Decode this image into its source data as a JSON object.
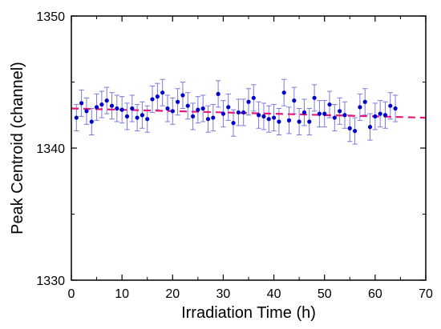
{
  "chart_data": {
    "type": "scatter",
    "title": "",
    "xlabel": "Irradiation Time (h)",
    "ylabel": "Peak Centroid (channel)",
    "xlim": [
      0,
      70
    ],
    "ylim": [
      1330,
      1350
    ],
    "xticks": [
      0,
      10,
      20,
      30,
      40,
      50,
      60,
      70
    ],
    "yticks": [
      1330,
      1340,
      1350
    ],
    "grid": false,
    "legend": "none",
    "series": [
      {
        "kind": "points-with-errorbars",
        "color": "#0000cc",
        "errorbar_color": "#7b7bdc",
        "x": [
          1,
          2,
          3,
          4,
          5,
          6,
          7,
          8,
          9,
          10,
          11,
          12,
          13,
          14,
          15,
          16,
          17,
          18,
          19,
          20,
          21,
          22,
          23,
          24,
          25,
          26,
          27,
          28,
          29,
          30,
          31,
          32,
          33,
          34,
          35,
          36,
          37,
          38,
          39,
          40,
          41,
          42,
          43,
          44,
          45,
          46,
          47,
          48,
          49,
          50,
          51,
          52,
          53,
          54,
          55,
          56,
          57,
          58,
          59,
          60,
          61,
          62,
          63,
          64
        ],
        "y": [
          1342.3,
          1343.4,
          1342.8,
          1342.0,
          1343.1,
          1343.3,
          1343.6,
          1343.2,
          1343.0,
          1342.9,
          1342.4,
          1343.0,
          1342.3,
          1342.5,
          1342.2,
          1343.7,
          1343.9,
          1344.2,
          1343.0,
          1342.8,
          1343.5,
          1344.0,
          1343.2,
          1342.4,
          1342.9,
          1343.0,
          1342.2,
          1342.3,
          1344.1,
          1342.6,
          1343.1,
          1341.9,
          1342.7,
          1342.7,
          1343.5,
          1343.8,
          1342.5,
          1342.4,
          1342.2,
          1342.3,
          1342.0,
          1344.2,
          1342.1,
          1343.6,
          1342.0,
          1342.7,
          1342.0,
          1343.8,
          1342.6,
          1342.6,
          1343.3,
          1342.3,
          1342.8,
          1342.5,
          1341.5,
          1341.3,
          1343.1,
          1343.5,
          1341.6,
          1342.4,
          1342.6,
          1342.5,
          1343.2,
          1343.0
        ],
        "yerr": 1.0
      },
      {
        "kind": "fit-line",
        "style": "dashed",
        "color": "#e6197e",
        "x": [
          0,
          70
        ],
        "y": [
          1343.0,
          1342.3
        ]
      }
    ]
  }
}
